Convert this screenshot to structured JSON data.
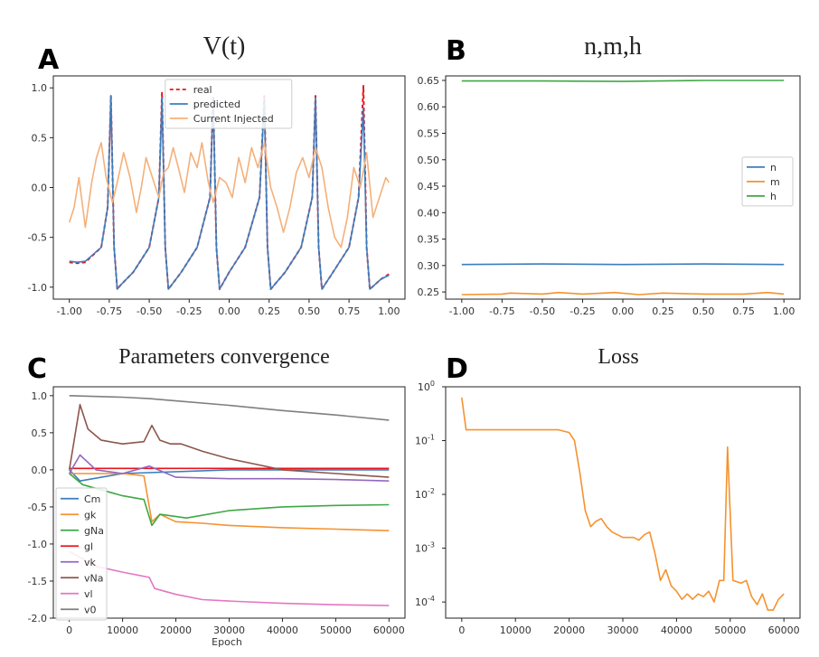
{
  "panels": {
    "A": {
      "letter": "A",
      "title": "V(t)"
    },
    "B": {
      "letter": "B",
      "title": "n,m,h"
    },
    "C": {
      "letter": "C",
      "title": "Parameters convergence",
      "xlabel": "Epoch"
    },
    "D": {
      "letter": "D",
      "title": "Loss"
    }
  },
  "chart_data": [
    {
      "id": "A",
      "type": "line",
      "title": "V(t)",
      "xlim": [
        -1.1,
        1.1
      ],
      "ylim": [
        -1.12,
        1.12
      ],
      "xticks": [
        "-1.00",
        "-0.75",
        "-0.50",
        "-0.25",
        "0.00",
        "0.25",
        "0.50",
        "0.75",
        "1.00"
      ],
      "xtick_values": [
        -1.0,
        -0.75,
        -0.5,
        -0.25,
        0.0,
        0.25,
        0.5,
        0.75,
        1.0
      ],
      "yticks": [
        "1.0",
        "0.5",
        "0.0",
        "-0.5",
        "-1.0"
      ],
      "ytick_values": [
        1.0,
        0.5,
        0.0,
        -0.5,
        -1.0
      ],
      "legend": {
        "position": "top-center",
        "entries": [
          "real",
          "predicted",
          "Current Injected"
        ]
      },
      "series": [
        {
          "name": "real",
          "color": "#e8141b",
          "style": "dashed",
          "x": [
            -1.0,
            -0.95,
            -0.9,
            -0.8,
            -0.76,
            -0.74,
            -0.72,
            -0.7,
            -0.68,
            -0.6,
            -0.5,
            -0.44,
            -0.42,
            -0.4,
            -0.38,
            -0.3,
            -0.2,
            -0.12,
            -0.1,
            -0.08,
            -0.06,
            0.0,
            0.1,
            0.19,
            0.22,
            0.24,
            0.26,
            0.35,
            0.45,
            0.52,
            0.54,
            0.56,
            0.58,
            0.65,
            0.75,
            0.81,
            0.84,
            0.86,
            0.88,
            0.95,
            1.0
          ],
          "y": [
            -0.75,
            -0.76,
            -0.75,
            -0.6,
            -0.2,
            0.92,
            -0.6,
            -1.02,
            -0.98,
            -0.85,
            -0.6,
            -0.1,
            0.95,
            -0.6,
            -1.02,
            -0.85,
            -0.6,
            -0.1,
            0.92,
            -0.6,
            -1.02,
            -0.85,
            -0.6,
            -0.1,
            0.92,
            -0.6,
            -1.02,
            -0.85,
            -0.6,
            -0.1,
            0.92,
            -0.6,
            -1.02,
            -0.85,
            -0.6,
            -0.1,
            1.02,
            -0.6,
            -1.02,
            -0.92,
            -0.87
          ]
        },
        {
          "name": "predicted",
          "color": "#3b7dbd",
          "style": "solid",
          "x": [
            -1.0,
            -0.95,
            -0.9,
            -0.8,
            -0.76,
            -0.74,
            -0.72,
            -0.7,
            -0.68,
            -0.6,
            -0.5,
            -0.44,
            -0.42,
            -0.4,
            -0.38,
            -0.3,
            -0.2,
            -0.12,
            -0.1,
            -0.08,
            -0.06,
            0.0,
            0.1,
            0.19,
            0.22,
            0.24,
            0.26,
            0.35,
            0.45,
            0.52,
            0.54,
            0.56,
            0.58,
            0.65,
            0.75,
            0.81,
            0.84,
            0.86,
            0.88,
            0.95,
            1.0
          ],
          "y": [
            -0.74,
            -0.75,
            -0.74,
            -0.6,
            -0.2,
            0.92,
            -0.6,
            -1.02,
            -0.98,
            -0.85,
            -0.6,
            -0.1,
            0.9,
            -0.6,
            -1.02,
            -0.85,
            -0.6,
            -0.1,
            0.9,
            -0.6,
            -1.02,
            -0.85,
            -0.6,
            -0.1,
            0.88,
            -0.6,
            -1.02,
            -0.85,
            -0.6,
            -0.1,
            0.9,
            -0.6,
            -1.02,
            -0.85,
            -0.6,
            -0.1,
            0.8,
            -0.6,
            -1.02,
            -0.92,
            -0.88
          ]
        },
        {
          "name": "Current Injected",
          "color": "#f4b07a",
          "style": "solid",
          "x": [
            -1.0,
            -0.97,
            -0.94,
            -0.9,
            -0.86,
            -0.83,
            -0.8,
            -0.77,
            -0.73,
            -0.7,
            -0.66,
            -0.62,
            -0.58,
            -0.55,
            -0.52,
            -0.48,
            -0.44,
            -0.41,
            -0.38,
            -0.35,
            -0.31,
            -0.28,
            -0.24,
            -0.2,
            -0.17,
            -0.13,
            -0.1,
            -0.06,
            -0.02,
            0.02,
            0.06,
            0.1,
            0.14,
            0.18,
            0.22,
            0.26,
            0.3,
            0.34,
            0.38,
            0.42,
            0.46,
            0.5,
            0.54,
            0.58,
            0.62,
            0.66,
            0.7,
            0.74,
            0.78,
            0.82,
            0.86,
            0.9,
            0.94,
            0.98,
            1.0
          ],
          "y": [
            -0.35,
            -0.2,
            0.1,
            -0.4,
            0.05,
            0.3,
            0.45,
            0.1,
            -0.15,
            0.05,
            0.35,
            0.1,
            -0.25,
            0.0,
            0.3,
            0.1,
            -0.1,
            0.15,
            0.2,
            0.4,
            0.15,
            -0.05,
            0.35,
            0.2,
            0.45,
            0.05,
            -0.15,
            0.1,
            0.05,
            -0.1,
            0.3,
            0.05,
            0.4,
            0.2,
            0.45,
            0.0,
            -0.2,
            -0.45,
            -0.2,
            0.15,
            0.3,
            0.1,
            0.4,
            0.2,
            -0.2,
            -0.5,
            -0.6,
            -0.3,
            0.2,
            0.0,
            0.35,
            -0.3,
            -0.1,
            0.1,
            0.05
          ]
        }
      ]
    },
    {
      "id": "B",
      "type": "line",
      "title": "n,m,h",
      "xlim": [
        -1.1,
        1.1
      ],
      "ylim": [
        0.2365,
        0.6585
      ],
      "xticks": [
        "-1.00",
        "-0.75",
        "-0.50",
        "-0.25",
        "0.00",
        "0.25",
        "0.50",
        "0.75",
        "1.00"
      ],
      "xtick_values": [
        -1.0,
        -0.75,
        -0.5,
        -0.25,
        0.0,
        0.25,
        0.5,
        0.75,
        1.0
      ],
      "yticks": [
        "0.65",
        "0.60",
        "0.55",
        "0.50",
        "0.45",
        "0.40",
        "0.35",
        "0.30",
        "0.25"
      ],
      "ytick_values": [
        0.65,
        0.6,
        0.55,
        0.5,
        0.45,
        0.4,
        0.35,
        0.3,
        0.25
      ],
      "legend": {
        "position": "center-right",
        "entries": [
          "n",
          "m",
          "h"
        ]
      },
      "series": [
        {
          "name": "n",
          "color": "#3b7dbd",
          "x": [
            -1.0,
            -0.5,
            0.0,
            0.5,
            1.0
          ],
          "y": [
            0.302,
            0.303,
            0.302,
            0.303,
            0.302
          ]
        },
        {
          "name": "m",
          "color": "#f5922f",
          "x": [
            -1.0,
            -0.75,
            -0.7,
            -0.5,
            -0.4,
            -0.25,
            -0.05,
            0.1,
            0.25,
            0.5,
            0.75,
            0.9,
            1.0
          ],
          "y": [
            0.245,
            0.246,
            0.248,
            0.246,
            0.249,
            0.246,
            0.249,
            0.245,
            0.248,
            0.246,
            0.246,
            0.249,
            0.246
          ]
        },
        {
          "name": "h",
          "color": "#3ea845",
          "x": [
            -1.0,
            -0.5,
            0.0,
            0.5,
            1.0
          ],
          "y": [
            0.649,
            0.649,
            0.648,
            0.65,
            0.65
          ]
        }
      ]
    },
    {
      "id": "C",
      "type": "line",
      "title": "Parameters convergence",
      "xlabel": "Epoch",
      "xlim": [
        -3000,
        63000
      ],
      "ylim": [
        -2.0,
        1.12
      ],
      "xticks": [
        "0",
        "10000",
        "20000",
        "30000",
        "40000",
        "50000",
        "60000"
      ],
      "xtick_values": [
        0,
        10000,
        20000,
        30000,
        40000,
        50000,
        60000
      ],
      "yticks": [
        "1.0",
        "0.5",
        "0.0",
        "-0.5",
        "-1.0",
        "-1.5",
        "-2.0"
      ],
      "ytick_values": [
        1.0,
        0.5,
        0.0,
        -0.5,
        -1.0,
        -1.5,
        -2.0
      ],
      "legend": {
        "position": "lower-left",
        "entries": [
          "Cm",
          "gk",
          "gNa",
          "gl",
          "vk",
          "vNa",
          "vl",
          "v0"
        ]
      },
      "series": [
        {
          "name": "Cm",
          "color": "#3b7dbd",
          "x": [
            0,
            2000,
            10000,
            30000,
            60000
          ],
          "y": [
            0.0,
            -0.15,
            -0.05,
            0.0,
            0.0
          ]
        },
        {
          "name": "gk",
          "color": "#f5922f",
          "x": [
            0,
            3000,
            10000,
            14000,
            15500,
            17000,
            20000,
            25000,
            30000,
            40000,
            50000,
            60000
          ],
          "y": [
            -0.05,
            -0.05,
            -0.05,
            -0.08,
            -0.7,
            -0.6,
            -0.7,
            -0.72,
            -0.75,
            -0.78,
            -0.8,
            -0.82
          ]
        },
        {
          "name": "gNa",
          "color": "#3ea845",
          "x": [
            0,
            2500,
            10000,
            14000,
            15500,
            17000,
            22000,
            30000,
            40000,
            50000,
            60000
          ],
          "y": [
            -0.05,
            -0.2,
            -0.35,
            -0.4,
            -0.75,
            -0.6,
            -0.65,
            -0.55,
            -0.5,
            -0.48,
            -0.47
          ]
        },
        {
          "name": "gl",
          "color": "#e8141b",
          "x": [
            0,
            20000,
            40000,
            60000
          ],
          "y": [
            0.02,
            0.02,
            0.02,
            0.02
          ]
        },
        {
          "name": "vk",
          "color": "#9467bd",
          "x": [
            0,
            2000,
            5000,
            10000,
            15000,
            20000,
            30000,
            40000,
            50000,
            60000
          ],
          "y": [
            -0.05,
            0.2,
            0.0,
            -0.05,
            0.05,
            -0.1,
            -0.12,
            -0.12,
            -0.13,
            -0.15
          ]
        },
        {
          "name": "vNa",
          "color": "#8c564b",
          "x": [
            0,
            2000,
            3500,
            6000,
            10000,
            14000,
            15500,
            17000,
            19000,
            21000,
            25000,
            30000,
            40000,
            50000,
            60000
          ],
          "y": [
            0.0,
            0.88,
            0.55,
            0.4,
            0.35,
            0.38,
            0.6,
            0.4,
            0.35,
            0.35,
            0.25,
            0.15,
            0.0,
            -0.05,
            -0.1
          ]
        },
        {
          "name": "vl",
          "color": "#e377c2",
          "x": [
            0,
            5000,
            10000,
            15000,
            16000,
            20000,
            25000,
            30000,
            40000,
            50000,
            60000
          ],
          "y": [
            -1.1,
            -1.3,
            -1.38,
            -1.45,
            -1.6,
            -1.68,
            -1.75,
            -1.77,
            -1.8,
            -1.82,
            -1.83
          ]
        },
        {
          "name": "v0",
          "color": "#7f7f7f",
          "x": [
            0,
            5000,
            10000,
            15000,
            20000,
            30000,
            40000,
            50000,
            60000
          ],
          "y": [
            1.0,
            0.99,
            0.98,
            0.96,
            0.93,
            0.87,
            0.8,
            0.74,
            0.67
          ]
        }
      ]
    },
    {
      "id": "D",
      "type": "line",
      "title": "Loss",
      "yscale": "log",
      "xlim": [
        -3000,
        63000
      ],
      "ylim_log10": [
        -4.3,
        0.0
      ],
      "xticks": [
        "0",
        "10000",
        "20000",
        "30000",
        "40000",
        "50000",
        "60000"
      ],
      "xtick_values": [
        0,
        10000,
        20000,
        30000,
        40000,
        50000,
        60000
      ],
      "yticks_exponents": [
        "0",
        "-1",
        "-2",
        "-3",
        "-4"
      ],
      "ytick_values_log10": [
        0,
        -1,
        -2,
        -3,
        -4
      ],
      "ytick_base": "10",
      "series": [
        {
          "name": "loss",
          "color": "#f5922f",
          "x": [
            0,
            800,
            5000,
            10000,
            15000,
            18000,
            20000,
            21000,
            22000,
            23000,
            24000,
            25000,
            26000,
            27000,
            28000,
            30000,
            32000,
            33000,
            34000,
            35000,
            36000,
            37000,
            38000,
            39000,
            40000,
            41000,
            42000,
            43000,
            44000,
            45000,
            46000,
            47000,
            48000,
            48800,
            49500,
            50500,
            52000,
            53000,
            54000,
            55000,
            56000,
            57000,
            58000,
            59000,
            60000
          ],
          "y_log10": [
            -0.2,
            -0.8,
            -0.8,
            -0.8,
            -0.8,
            -0.8,
            -0.85,
            -1.0,
            -1.6,
            -2.3,
            -2.6,
            -2.5,
            -2.45,
            -2.6,
            -2.7,
            -2.8,
            -2.8,
            -2.85,
            -2.75,
            -2.7,
            -3.1,
            -3.6,
            -3.4,
            -3.7,
            -3.8,
            -3.95,
            -3.85,
            -3.95,
            -3.85,
            -3.9,
            -3.8,
            -4.0,
            -3.6,
            -3.6,
            -1.12,
            -3.6,
            -3.65,
            -3.6,
            -3.9,
            -4.05,
            -3.85,
            -4.15,
            -4.15,
            -3.95,
            -3.85
          ]
        }
      ]
    }
  ]
}
